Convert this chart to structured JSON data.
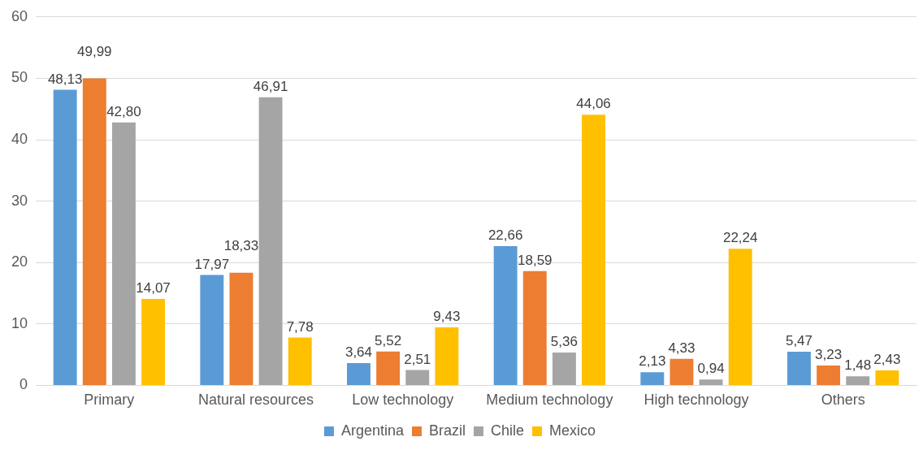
{
  "chart_data": {
    "type": "bar",
    "categories": [
      "Primary",
      "Natural resources",
      "Low technology",
      "Medium technology",
      "High technology",
      "Others"
    ],
    "series": [
      {
        "name": "Argentina",
        "color": "#5b9bd5",
        "values": [
          48.13,
          17.97,
          3.64,
          22.66,
          2.13,
          5.47
        ],
        "value_labels": [
          "48,13",
          "17,97",
          "3,64",
          "22,66",
          "2,13",
          "5,47"
        ]
      },
      {
        "name": "Brazil",
        "color": "#ed7d31",
        "values": [
          49.99,
          18.33,
          5.52,
          18.59,
          4.33,
          3.23
        ],
        "value_labels": [
          "49,99",
          "18,33",
          "5,52",
          "18,59",
          "4,33",
          "3,23"
        ]
      },
      {
        "name": "Chile",
        "color": "#a5a5a5",
        "values": [
          42.8,
          46.91,
          2.51,
          5.36,
          0.94,
          1.48
        ],
        "value_labels": [
          "42,80",
          "46,91",
          "2,51",
          "5,36",
          "0,94",
          "1,48"
        ]
      },
      {
        "name": "Mexico",
        "color": "#ffc000",
        "values": [
          14.07,
          7.78,
          9.43,
          44.06,
          22.24,
          2.43
        ],
        "value_labels": [
          "14,07",
          "7,78",
          "9,43",
          "44,06",
          "22,24",
          "2,43"
        ]
      }
    ],
    "ylim": [
      0,
      60
    ],
    "yticks": [
      0,
      10,
      20,
      30,
      40,
      50,
      60
    ],
    "grid": "y",
    "legend": "bottom"
  }
}
